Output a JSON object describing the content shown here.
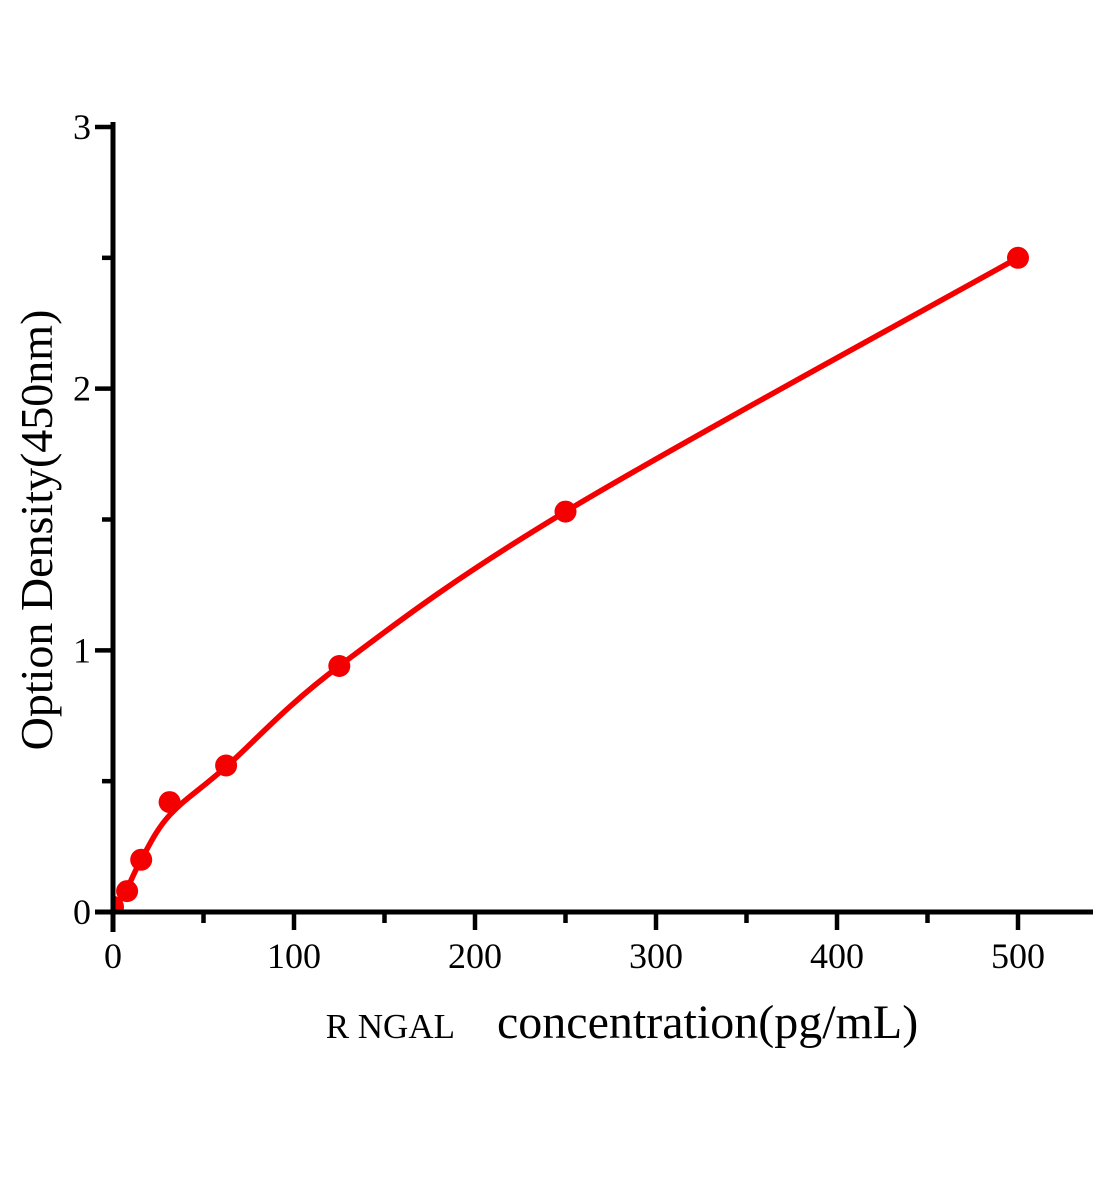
{
  "chart_data": {
    "type": "scatter",
    "title": "",
    "ylabel": "Option Density(450nm)",
    "xlabel_prefix": "R NGAL",
    "xlabel_main": "concentration(pg/mL)",
    "xlim": [
      0,
      500
    ],
    "ylim": [
      0,
      3
    ],
    "x_major_ticks": [
      0,
      100,
      200,
      300,
      400,
      500
    ],
    "x_minor_ticks": [
      50,
      150,
      250,
      350,
      450
    ],
    "y_major_ticks": [
      0,
      1,
      2,
      3
    ],
    "y_minor_ticks": [
      0.5,
      1.5,
      2.5
    ],
    "grid": false,
    "legend": "none",
    "marker": "filled-circle",
    "point_color": "#f40000",
    "curve_color": "#f40000",
    "axis_color": "#000000",
    "points": [
      {
        "x": 0,
        "y": 0.02
      },
      {
        "x": 7.8,
        "y": 0.08
      },
      {
        "x": 15.6,
        "y": 0.2
      },
      {
        "x": 31.25,
        "y": 0.42
      },
      {
        "x": 62.5,
        "y": 0.56
      },
      {
        "x": 125,
        "y": 0.94
      },
      {
        "x": 250,
        "y": 1.53
      },
      {
        "x": 500,
        "y": 2.5
      }
    ],
    "fit_curve_anchors": [
      {
        "x": 0,
        "y": 0.0
      },
      {
        "x": 7.8,
        "y": 0.09
      },
      {
        "x": 15.6,
        "y": 0.2
      },
      {
        "x": 31.25,
        "y": 0.37
      },
      {
        "x": 62.5,
        "y": 0.555
      },
      {
        "x": 125,
        "y": 0.94
      },
      {
        "x": 250,
        "y": 1.53
      },
      {
        "x": 500,
        "y": 2.5
      }
    ]
  }
}
